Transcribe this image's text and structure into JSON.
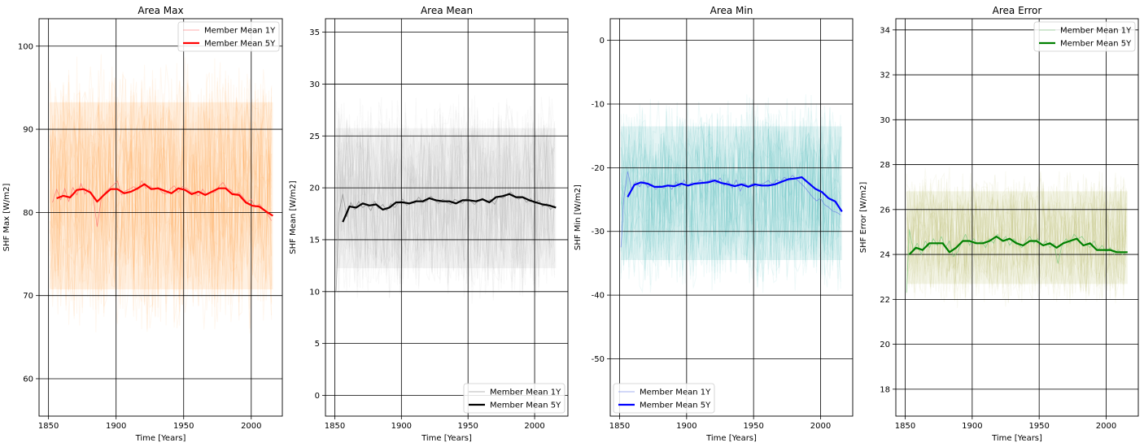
{
  "chart_data": [
    {
      "type": "line",
      "title": "Area Max",
      "xlabel": "Time [Years]",
      "ylabel": "SHF Max [W/m2]",
      "xlim": [
        1843,
        2023
      ],
      "ylim": [
        55.5,
        103.3
      ],
      "xticks": [
        1850,
        1900,
        1950,
        2000
      ],
      "yticks": [
        60,
        70,
        80,
        90,
        100
      ],
      "grid": true,
      "legend": "top-right",
      "band_color": "#ff8c1a",
      "band_low": 67,
      "band_high": 97,
      "series": [
        {
          "name": "Member Mean 1Y",
          "color": "#ff6b6b",
          "width": 0.8,
          "opacity": 0.75,
          "x": [
            1853,
            1856,
            1859,
            1862,
            1865,
            1868,
            1871,
            1874,
            1877,
            1880,
            1883,
            1886,
            1889,
            1892,
            1895,
            1898,
            1901,
            1904,
            1907,
            1910,
            1913,
            1916,
            1919,
            1922,
            1925,
            1928,
            1931,
            1934,
            1937,
            1940,
            1943,
            1946,
            1949,
            1952,
            1955,
            1958,
            1961,
            1964,
            1967,
            1970,
            1973,
            1976,
            1979,
            1982,
            1985,
            1988,
            1991,
            1994,
            1997,
            2000,
            2003,
            2006,
            2009,
            2012,
            2015
          ],
          "y": [
            81.2,
            82.8,
            81.5,
            82.9,
            81.3,
            83.0,
            82.1,
            83.5,
            82.2,
            82.8,
            82.0,
            78.3,
            81.6,
            82.4,
            82.9,
            83.3,
            83.8,
            82.1,
            82.6,
            82.8,
            83.1,
            82.7,
            83.8,
            82.9,
            83.2,
            82.7,
            83.0,
            82.4,
            82.2,
            82.8,
            83.2,
            82.4,
            83.1,
            82.9,
            82.5,
            82.3,
            82.0,
            82.8,
            82.1,
            82.5,
            82.4,
            83.1,
            83.6,
            82.9,
            82.7,
            82.1,
            82.4,
            81.8,
            81.2,
            81.6,
            80.6,
            81.0,
            80.4,
            79.8,
            79.0
          ]
        },
        {
          "name": "Member Mean 5Y",
          "color": "#ff0000",
          "width": 2.2,
          "opacity": 1,
          "x": [
            1856,
            1861,
            1866,
            1871,
            1876,
            1881,
            1886,
            1891,
            1896,
            1901,
            1906,
            1911,
            1916,
            1921,
            1926,
            1931,
            1936,
            1941,
            1946,
            1951,
            1956,
            1961,
            1966,
            1971,
            1976,
            1981,
            1986,
            1991,
            1996,
            2001,
            2006,
            2011,
            2016
          ],
          "y": [
            81.7,
            82.0,
            81.8,
            82.7,
            82.8,
            82.4,
            81.3,
            82.1,
            82.8,
            82.8,
            82.3,
            82.5,
            82.9,
            83.4,
            82.8,
            82.9,
            82.6,
            82.3,
            82.9,
            82.7,
            82.2,
            82.5,
            82.1,
            82.5,
            82.9,
            82.9,
            82.2,
            82.1,
            81.2,
            80.8,
            80.7,
            80.1,
            79.6
          ]
        }
      ]
    },
    {
      "type": "line",
      "title": "Area Mean",
      "xlabel": "Time [Years]",
      "ylabel": "SHF Mean [W/m2]",
      "xlim": [
        1843,
        2025
      ],
      "ylim": [
        -2,
        36.3
      ],
      "xticks": [
        1850,
        1900,
        1950,
        2000
      ],
      "yticks": [
        0,
        5,
        10,
        15,
        20,
        25,
        30,
        35
      ],
      "grid": true,
      "legend": "bottom-right",
      "band_color": "#a0a0a0",
      "band_low": 10,
      "band_high": 28,
      "series": [
        {
          "name": "Member Mean 1Y",
          "color": "#8a8a8a",
          "width": 0.8,
          "opacity": 0.8,
          "x": [
            1851,
            1853,
            1856,
            1859,
            1862,
            1865,
            1868,
            1871,
            1874,
            1877,
            1880,
            1883,
            1886,
            1889,
            1892,
            1895,
            1898,
            1901,
            1904,
            1907,
            1910,
            1913,
            1916,
            1919,
            1922,
            1925,
            1928,
            1931,
            1934,
            1937,
            1940,
            1943,
            1946,
            1949,
            1952,
            1955,
            1958,
            1961,
            1964,
            1967,
            1970,
            1973,
            1976,
            1979,
            1982,
            1985,
            1988,
            1991,
            1994,
            1997,
            2000,
            2003,
            2006,
            2009,
            2012,
            2015
          ],
          "y": [
            10.0,
            17.5,
            19.4,
            17.2,
            18.6,
            17.9,
            18.7,
            18.1,
            18.4,
            17.8,
            18.7,
            18.0,
            18.4,
            17.8,
            18.5,
            18.1,
            18.6,
            18.9,
            18.3,
            18.6,
            18.5,
            19.1,
            18.6,
            18.7,
            19.2,
            18.8,
            18.5,
            18.9,
            18.6,
            18.4,
            18.9,
            18.7,
            18.5,
            19.0,
            18.7,
            18.4,
            18.8,
            19.0,
            18.6,
            18.9,
            18.4,
            19.2,
            19.0,
            19.3,
            19.6,
            19.2,
            18.9,
            19.1,
            18.6,
            19.0,
            18.4,
            18.8,
            18.2,
            18.5,
            17.9,
            18.3
          ]
        },
        {
          "name": "Member Mean 5Y",
          "color": "#000000",
          "width": 2.2,
          "opacity": 1,
          "x": [
            1856,
            1861,
            1866,
            1871,
            1876,
            1881,
            1886,
            1891,
            1896,
            1901,
            1906,
            1911,
            1916,
            1921,
            1926,
            1931,
            1936,
            1941,
            1946,
            1951,
            1956,
            1961,
            1966,
            1971,
            1976,
            1981,
            1986,
            1991,
            1996,
            2001,
            2006,
            2011,
            2016
          ],
          "y": [
            16.7,
            18.2,
            18.1,
            18.5,
            18.3,
            18.4,
            17.9,
            18.1,
            18.6,
            18.6,
            18.5,
            18.7,
            18.7,
            19.0,
            18.8,
            18.7,
            18.7,
            18.5,
            18.8,
            18.8,
            18.7,
            18.9,
            18.6,
            19.1,
            19.2,
            19.4,
            19.1,
            19.1,
            18.8,
            18.6,
            18.4,
            18.3,
            18.1
          ]
        }
      ]
    },
    {
      "type": "line",
      "title": "Area Min",
      "xlabel": "Time [Years]",
      "ylabel": "SHF Min [W/m2]",
      "xlim": [
        1843,
        2024
      ],
      "ylim": [
        -59,
        3.4
      ],
      "xticks": [
        1850,
        1900,
        1950,
        2000
      ],
      "yticks": [
        -50,
        -40,
        -30,
        -20,
        -10,
        0
      ],
      "grid": true,
      "legend": "bottom-left",
      "band_color": "#20a8a8",
      "band_low": -38,
      "band_high": -10,
      "series": [
        {
          "name": "Member Mean 1Y",
          "color": "#6b7fe6",
          "width": 0.8,
          "opacity": 0.8,
          "x": [
            1851,
            1853,
            1856,
            1859,
            1862,
            1865,
            1868,
            1871,
            1874,
            1877,
            1880,
            1883,
            1886,
            1889,
            1892,
            1895,
            1898,
            1901,
            1904,
            1907,
            1910,
            1913,
            1916,
            1919,
            1922,
            1925,
            1928,
            1931,
            1934,
            1937,
            1940,
            1943,
            1946,
            1949,
            1952,
            1955,
            1958,
            1961,
            1964,
            1967,
            1970,
            1973,
            1976,
            1979,
            1982,
            1985,
            1988,
            1991,
            1994,
            1997,
            2000,
            2003,
            2006,
            2009,
            2012,
            2015
          ],
          "y": [
            -32.5,
            -25.0,
            -20.6,
            -23.4,
            -22.2,
            -23.0,
            -22.0,
            -23.1,
            -22.6,
            -23.4,
            -22.8,
            -23.2,
            -22.7,
            -23.4,
            -22.2,
            -23.0,
            -21.9,
            -22.9,
            -22.3,
            -22.6,
            -21.9,
            -22.4,
            -22.1,
            -21.8,
            -22.5,
            -21.6,
            -22.8,
            -22.1,
            -23.2,
            -21.9,
            -23.7,
            -22.4,
            -22.9,
            -22.5,
            -23.0,
            -22.6,
            -22.4,
            -22.0,
            -22.6,
            -21.9,
            -22.2,
            -21.5,
            -22.0,
            -21.2,
            -21.8,
            -22.4,
            -23.0,
            -23.8,
            -24.6,
            -25.2,
            -24.8,
            -25.8,
            -26.2,
            -26.8,
            -27.0,
            -27.4
          ]
        },
        {
          "name": "Member Mean 5Y",
          "color": "#0000ff",
          "width": 2.2,
          "opacity": 1,
          "x": [
            1856,
            1861,
            1866,
            1871,
            1876,
            1881,
            1886,
            1891,
            1896,
            1901,
            1906,
            1911,
            1916,
            1921,
            1926,
            1931,
            1936,
            1941,
            1946,
            1951,
            1956,
            1961,
            1966,
            1971,
            1976,
            1981,
            1986,
            1991,
            1996,
            2001,
            2006,
            2011,
            2016
          ],
          "y": [
            -24.6,
            -22.7,
            -22.3,
            -22.5,
            -23.0,
            -23.0,
            -22.8,
            -22.9,
            -22.5,
            -22.8,
            -22.5,
            -22.4,
            -22.3,
            -22.0,
            -22.4,
            -22.6,
            -22.9,
            -22.6,
            -23.0,
            -22.6,
            -22.8,
            -22.8,
            -22.6,
            -22.2,
            -21.8,
            -21.7,
            -21.5,
            -22.4,
            -23.3,
            -23.8,
            -24.8,
            -25.3,
            -26.9
          ]
        }
      ]
    },
    {
      "type": "line",
      "title": "Area Error",
      "xlabel": "Time [Years]",
      "ylabel": "SHF Error [W/m2]",
      "xlim": [
        1843,
        2024
      ],
      "ylim": [
        16.8,
        34.5
      ],
      "xticks": [
        1850,
        1900,
        1950,
        2000
      ],
      "yticks": [
        18,
        20,
        22,
        24,
        26,
        28,
        30,
        32,
        34
      ],
      "grid": true,
      "legend": "top-right",
      "band_color": "#a8ad40",
      "band_low": 22,
      "band_high": 27.5,
      "series": [
        {
          "name": "Member Mean 1Y",
          "color": "#7ec97e",
          "width": 0.8,
          "opacity": 0.8,
          "x": [
            1851,
            1853,
            1856,
            1859,
            1862,
            1865,
            1868,
            1871,
            1874,
            1877,
            1880,
            1883,
            1886,
            1889,
            1892,
            1895,
            1898,
            1901,
            1904,
            1907,
            1910,
            1913,
            1916,
            1919,
            1922,
            1925,
            1928,
            1931,
            1934,
            1937,
            1940,
            1943,
            1946,
            1949,
            1952,
            1955,
            1958,
            1961,
            1964,
            1967,
            1970,
            1973,
            1976,
            1979,
            1982,
            1985,
            1988,
            1991,
            1994,
            1997,
            2000,
            2003,
            2006,
            2009,
            2012,
            2015
          ],
          "y": [
            22.3,
            25.1,
            24.2,
            24.5,
            24.0,
            24.6,
            24.3,
            24.7,
            24.4,
            24.8,
            24.3,
            24.6,
            23.9,
            24.1,
            24.5,
            24.9,
            24.4,
            24.7,
            24.5,
            24.6,
            24.3,
            24.7,
            24.5,
            24.9,
            24.6,
            24.8,
            24.4,
            24.7,
            24.5,
            24.3,
            24.6,
            24.8,
            24.5,
            24.7,
            24.4,
            24.6,
            24.3,
            24.5,
            23.6,
            24.4,
            24.7,
            24.5,
            24.9,
            24.7,
            24.8,
            24.5,
            24.3,
            24.6,
            24.2,
            24.4,
            24.1,
            24.3,
            24.0,
            24.2,
            24.0,
            24.1
          ]
        },
        {
          "name": "Member Mean 5Y",
          "color": "#008000",
          "width": 2.2,
          "opacity": 1,
          "x": [
            1853,
            1858,
            1863,
            1868,
            1873,
            1878,
            1883,
            1888,
            1893,
            1898,
            1903,
            1908,
            1913,
            1918,
            1923,
            1928,
            1933,
            1938,
            1943,
            1948,
            1953,
            1958,
            1963,
            1968,
            1973,
            1978,
            1983,
            1988,
            1993,
            1998,
            2003,
            2008,
            2013,
            2016
          ],
          "y": [
            24.0,
            24.3,
            24.2,
            24.5,
            24.5,
            24.5,
            24.1,
            24.3,
            24.6,
            24.6,
            24.5,
            24.5,
            24.6,
            24.8,
            24.6,
            24.7,
            24.5,
            24.4,
            24.6,
            24.6,
            24.4,
            24.5,
            24.3,
            24.5,
            24.6,
            24.7,
            24.4,
            24.5,
            24.2,
            24.2,
            24.2,
            24.1,
            24.1,
            24.1
          ]
        }
      ]
    }
  ]
}
